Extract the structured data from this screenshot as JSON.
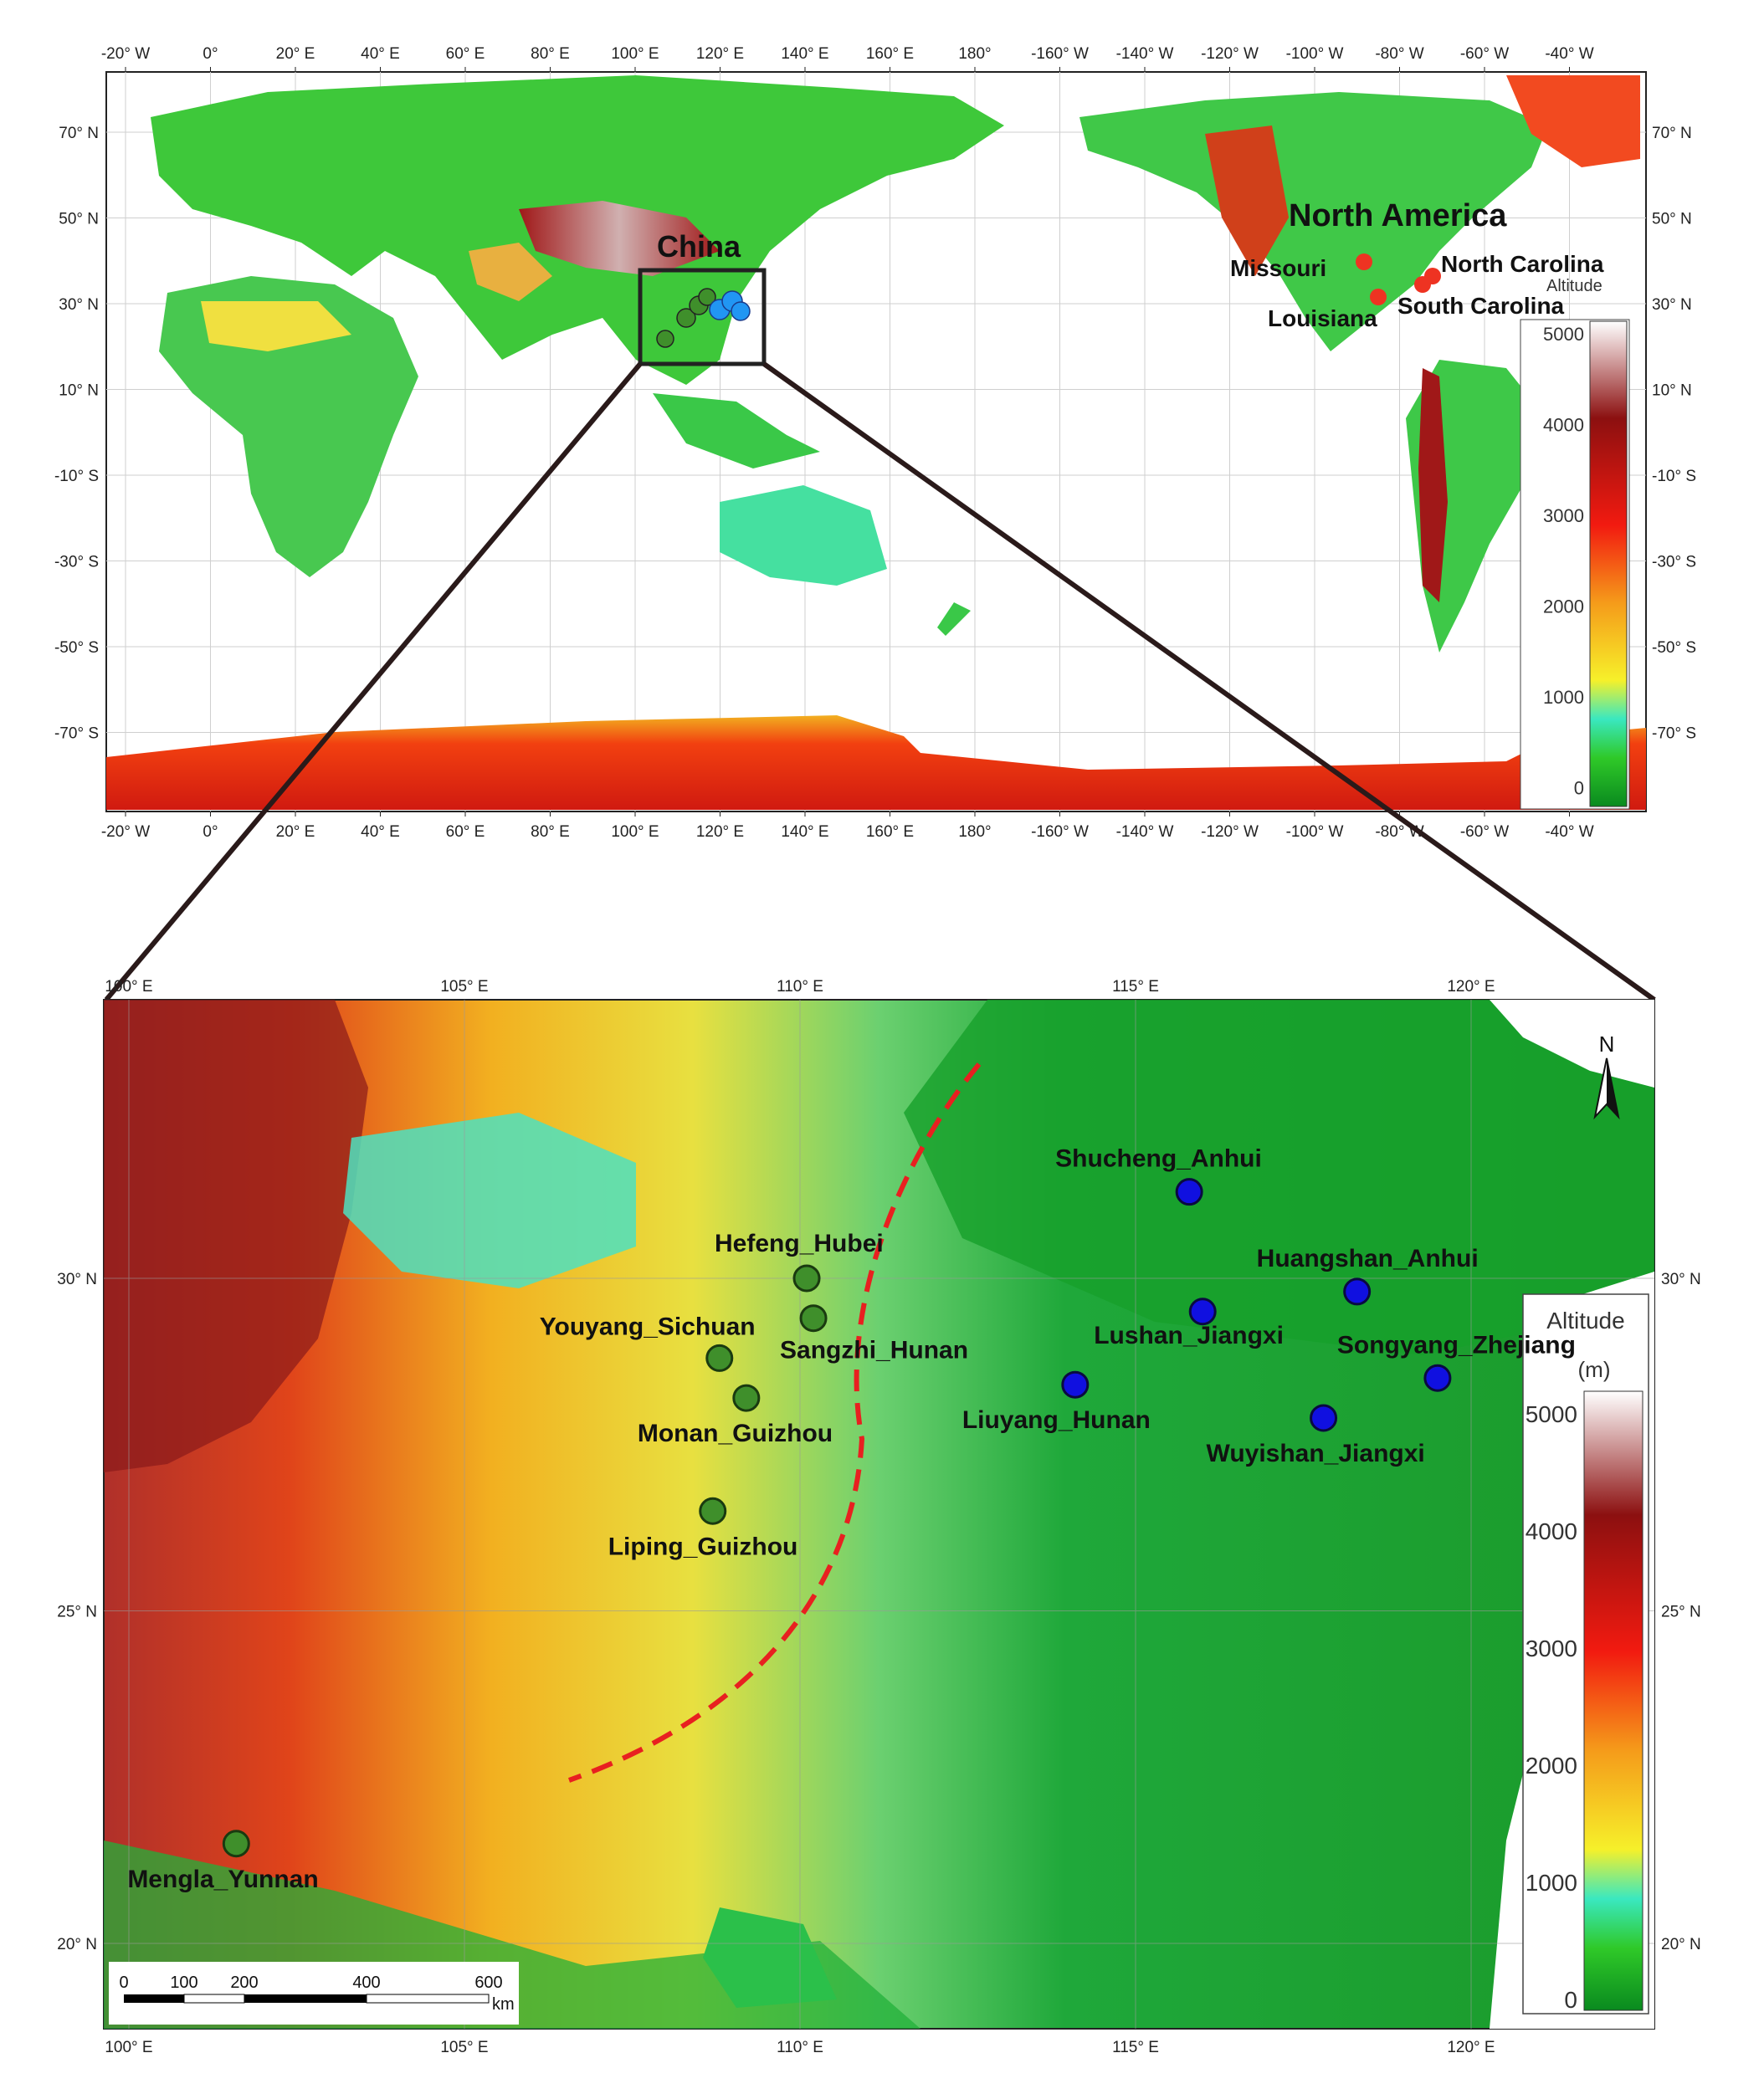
{
  "world_map": {
    "top_ticks": [
      "-20° W",
      "0°",
      "20° E",
      "40° E",
      "60° E",
      "80° E",
      "100° E",
      "120° E",
      "140° E",
      "160° E",
      "180°",
      "-160° W",
      "-140° W",
      "-120° W",
      "-100° W",
      "-80° W",
      "-60° W",
      "-40° W"
    ],
    "left_ticks": [
      "70° N",
      "50° N",
      "30° N",
      "10° N",
      "-10° S",
      "-30° S",
      "-50° S",
      "-70° S"
    ],
    "right_ticks": [
      "70° N",
      "50° N",
      "30° N",
      "10° N",
      "-10° S",
      "-30° S",
      "-50° S",
      "-70° S"
    ],
    "region_labels": {
      "china": "China",
      "north_america": "North America"
    },
    "site_labels": {
      "missouri": "Missouri",
      "louisiana": "Louisiana",
      "north_carolina": "North Carolina",
      "south_carolina": "South Carolina"
    },
    "legend": {
      "title": "Altitude",
      "ticks": [
        "5000",
        "4000",
        "3000",
        "2000",
        "1000",
        "0"
      ]
    }
  },
  "china_map": {
    "top_ticks": [
      "100° E",
      "105° E",
      "110° E",
      "115° E",
      "120° E"
    ],
    "bottom_ticks": [
      "100° E",
      "105° E",
      "110° E",
      "115° E",
      "120° E"
    ],
    "left_ticks": [
      "30° N",
      "25° N",
      "20° N"
    ],
    "right_ticks": [
      "30° N",
      "25° N",
      "20° N"
    ],
    "north_arrow": "N",
    "legend": {
      "title": "Altitude",
      "unit": "(m)",
      "ticks": [
        "5000",
        "4000",
        "3000",
        "2000",
        "1000",
        "0"
      ]
    },
    "scale": {
      "ticks": [
        "0",
        "100",
        "200",
        "400",
        "600"
      ],
      "unit": "km"
    },
    "sites_green": [
      {
        "name": "Hefeng_Hubei",
        "lon": 110.1,
        "lat": 30.0
      },
      {
        "name": "Sangzhi_Hunan",
        "lon": 110.2,
        "lat": 29.4
      },
      {
        "name": "Youyang_Sichuan",
        "lon": 108.8,
        "lat": 28.8
      },
      {
        "name": "Monan_Guizhou",
        "lon": 109.2,
        "lat": 28.2
      },
      {
        "name": "Liping_Guizhou",
        "lon": 108.7,
        "lat": 26.5
      },
      {
        "name": "Mengla_Yunnan",
        "lon": 101.6,
        "lat": 21.5
      }
    ],
    "sites_blue": [
      {
        "name": "Shucheng_Anhui",
        "lon": 115.8,
        "lat": 31.3
      },
      {
        "name": "Huangshan_Anhui",
        "lon": 118.3,
        "lat": 29.8
      },
      {
        "name": "Lushan_Jiangxi",
        "lon": 116.0,
        "lat": 29.5
      },
      {
        "name": "Songyang_Zhejiang",
        "lon": 119.5,
        "lat": 28.5
      },
      {
        "name": "Liuyang_Hunan",
        "lon": 114.1,
        "lat": 28.4
      },
      {
        "name": "Wuyishan_Jiangxi",
        "lon": 117.8,
        "lat": 27.9
      }
    ]
  },
  "colors": {
    "green_site": "#3f8f2b",
    "blue_site": "#1010e0",
    "red_site": "#ee3322",
    "boundary_line": "#e82020"
  }
}
